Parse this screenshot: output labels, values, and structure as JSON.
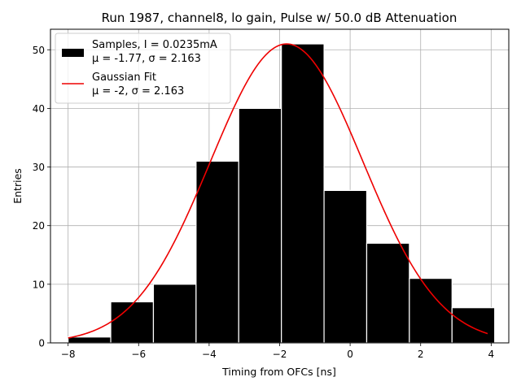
{
  "chart_data": {
    "type": "bar",
    "title": "Run 1987, channel8, lo gain, Pulse w/ 50.0 dB Attenuation",
    "xlabel": "Timing from OFCs [ns]",
    "ylabel": "Entries",
    "xlim": [
      -8.5,
      4.5
    ],
    "ylim": [
      0,
      53.5
    ],
    "grid": true,
    "legend_position": "top-left",
    "x_ticks": [
      -8,
      -6,
      -4,
      -2,
      0,
      2,
      4
    ],
    "y_ticks": [
      0,
      10,
      20,
      30,
      40,
      50
    ],
    "histogram": {
      "name": "Samples",
      "legend_line1": "Samples, I = 0.0235mA",
      "legend_line2": "μ = -1.77, σ = 2.163",
      "color": "#000000",
      "edge_color": "#ffffff",
      "bin_edges": [
        -8.0,
        -6.79,
        -5.58,
        -4.37,
        -3.16,
        -1.95,
        -0.74,
        0.47,
        1.68,
        2.89,
        4.1
      ],
      "counts": [
        1,
        7,
        10,
        31,
        40,
        51,
        26,
        17,
        11,
        6
      ]
    },
    "fit": {
      "name": "Gaussian Fit",
      "legend_line1": "Gaussian Fit",
      "legend_line2": "μ = -2, σ = 2.163",
      "color": "#ee0000",
      "amplitude": 51,
      "mean": -1.8,
      "sigma": 2.163,
      "x_range": [
        -8.0,
        3.9
      ]
    }
  }
}
